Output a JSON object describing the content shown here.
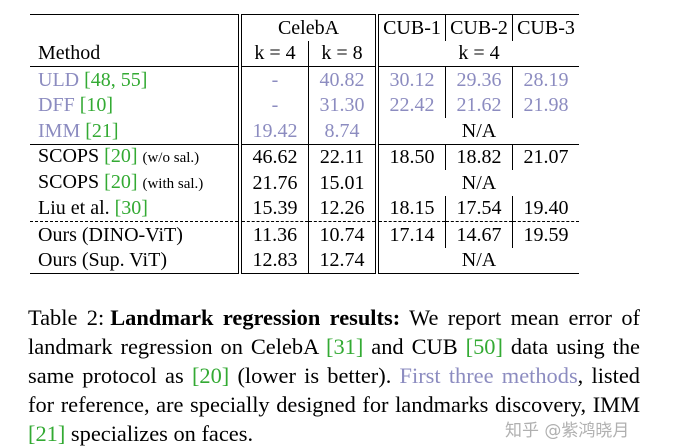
{
  "table": {
    "header": {
      "groups": [
        "CelebA",
        "CUB-1",
        "CUB-2",
        "CUB-3"
      ],
      "method": "Method",
      "k_celeba": [
        "k = 4",
        "k = 8"
      ],
      "k_cub": "k = 4"
    },
    "row_groups": [
      [
        {
          "method": "ULD",
          "ref": "[48, 55]",
          "muted": true,
          "celeba": [
            "-",
            "40.82"
          ],
          "cub": [
            "30.12",
            "29.36",
            "28.19"
          ],
          "bold": []
        },
        {
          "method": "DFF",
          "ref": "[10]",
          "muted": true,
          "celeba": [
            "-",
            "31.30"
          ],
          "cub": [
            "22.42",
            "21.62",
            "21.98"
          ],
          "bold": []
        },
        {
          "method": "IMM",
          "ref": "[21]",
          "muted": true,
          "celeba": [
            "19.42",
            "8.74"
          ],
          "cub": "N/A",
          "bold": [
            1
          ]
        }
      ],
      [
        {
          "method": "SCOPS",
          "ref": "[20]",
          "note": "(w/o sal.)",
          "celeba": [
            "46.62",
            "22.11"
          ],
          "cub": [
            "18.50",
            "18.82",
            "21.07"
          ],
          "bold": []
        },
        {
          "method": "SCOPS",
          "ref": "[20]",
          "note": "(with sal.)",
          "celeba": [
            "21.76",
            "15.01"
          ],
          "cub": "N/A",
          "bold": []
        },
        {
          "method": "Liu et al.",
          "ref": "[30]",
          "celeba": [
            "15.39",
            "12.26"
          ],
          "cub": [
            "18.15",
            "17.54",
            "19.40"
          ],
          "bold": [
            4
          ]
        }
      ],
      [
        {
          "method": "Ours (DINO-ViT)",
          "celeba": [
            "11.36",
            "10.74"
          ],
          "cub": [
            "17.14",
            "14.67",
            "19.59"
          ],
          "bold": [
            0,
            1,
            2,
            3
          ]
        },
        {
          "method": "Ours (Sup. ViT)",
          "celeba": [
            "12.83",
            "12.74"
          ],
          "cub": "N/A",
          "bold": []
        }
      ]
    ]
  },
  "caption": {
    "label": "Table 2:",
    "heading": "Landmark regression results:",
    "pieces": [
      {
        "text": " We report mean error of landmark regression on CelebA ",
        "kind": "plain"
      },
      {
        "text": "[31]",
        "kind": "ref"
      },
      {
        "text": " and CUB ",
        "kind": "plain"
      },
      {
        "text": "[50]",
        "kind": "ref"
      },
      {
        "text": " data using the same protocol as ",
        "kind": "plain"
      },
      {
        "text": "[20]",
        "kind": "ref"
      },
      {
        "text": " (lower is better). ",
        "kind": "plain"
      },
      {
        "text": "First three methods",
        "kind": "muted"
      },
      {
        "text": ", listed for reference, are specially designed for landmarks discovery, IMM ",
        "kind": "plain"
      },
      {
        "text": "[21]",
        "kind": "ref"
      },
      {
        "text": " specializes on faces.",
        "kind": "plain"
      }
    ]
  },
  "watermark": "知乎 @紫鸿晓月"
}
